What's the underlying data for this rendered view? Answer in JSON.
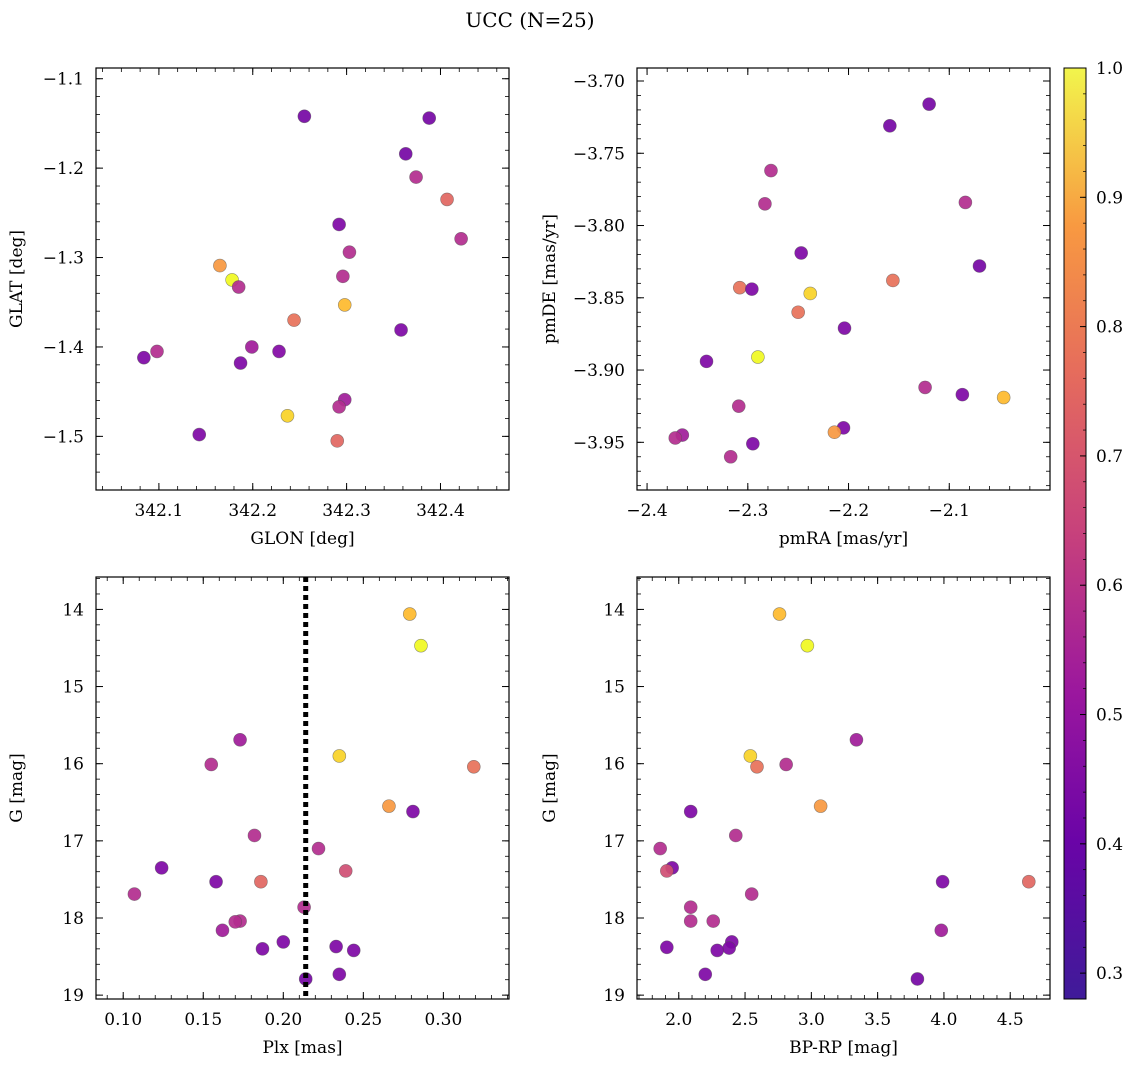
{
  "title": "UCC (N=25)",
  "colorbar": {
    "colormap": "plasma",
    "range": [
      0.28,
      1.0
    ],
    "ticks": [
      "1.0",
      "0.9",
      "0.8",
      "0.7",
      "0.6",
      "0.5",
      "0.4",
      "0.3"
    ]
  },
  "chart_data": [
    {
      "type": "scatter",
      "xlabel": "GLON [deg]",
      "ylabel": "GLAT [deg]",
      "xlim": [
        342.033,
        342.473
      ],
      "ylim": [
        -1.56,
        -1.088
      ],
      "y_inverted": false,
      "xticks": [
        "342.1",
        "342.2",
        "342.3",
        "342.4"
      ],
      "yticks": [
        "−1.1",
        "−1.2",
        "−1.3",
        "−1.4",
        "−1.5"
      ],
      "points": [
        {
          "x": 342.255,
          "y": -1.142,
          "p": 0.3
        },
        {
          "x": 342.388,
          "y": -1.144,
          "p": 0.3
        },
        {
          "x": 342.363,
          "y": -1.184,
          "p": 0.3
        },
        {
          "x": 342.374,
          "y": -1.21,
          "p": 0.45
        },
        {
          "x": 342.407,
          "y": -1.235,
          "p": 0.62
        },
        {
          "x": 342.292,
          "y": -1.263,
          "p": 0.32
        },
        {
          "x": 342.303,
          "y": -1.294,
          "p": 0.45
        },
        {
          "x": 342.422,
          "y": -1.279,
          "p": 0.45
        },
        {
          "x": 342.165,
          "y": -1.309,
          "p": 0.75
        },
        {
          "x": 342.296,
          "y": -1.321,
          "p": 0.45
        },
        {
          "x": 342.178,
          "y": -1.325,
          "p": 1.0
        },
        {
          "x": 342.185,
          "y": -1.333,
          "p": 0.45
        },
        {
          "x": 342.298,
          "y": -1.353,
          "p": 0.83
        },
        {
          "x": 342.244,
          "y": -1.37,
          "p": 0.65
        },
        {
          "x": 342.358,
          "y": -1.381,
          "p": 0.32
        },
        {
          "x": 342.199,
          "y": -1.4,
          "p": 0.4
        },
        {
          "x": 342.228,
          "y": -1.405,
          "p": 0.33
        },
        {
          "x": 342.098,
          "y": -1.405,
          "p": 0.45
        },
        {
          "x": 342.084,
          "y": -1.412,
          "p": 0.32
        },
        {
          "x": 342.187,
          "y": -1.418,
          "p": 0.32
        },
        {
          "x": 342.298,
          "y": -1.459,
          "p": 0.4
        },
        {
          "x": 342.292,
          "y": -1.467,
          "p": 0.45
        },
        {
          "x": 342.237,
          "y": -1.477,
          "p": 0.88
        },
        {
          "x": 342.143,
          "y": -1.498,
          "p": 0.32
        },
        {
          "x": 342.29,
          "y": -1.505,
          "p": 0.62
        }
      ]
    },
    {
      "type": "scatter",
      "xlabel": "pmRA [mas/yr]",
      "ylabel": "pmDE [mas/yr]",
      "xlim": [
        -2.41,
        -2.0
      ],
      "ylim": [
        -3.983,
        -3.691
      ],
      "y_inverted": false,
      "xticks": [
        "−2.4",
        "−2.3",
        "−2.2",
        "−2.1"
      ],
      "yticks": [
        "−3.70",
        "−3.75",
        "−3.80",
        "−3.85",
        "−3.90",
        "−3.95"
      ],
      "points": [
        {
          "x": -2.12,
          "y": -3.716,
          "p": 0.3
        },
        {
          "x": -2.159,
          "y": -3.731,
          "p": 0.3
        },
        {
          "x": -2.277,
          "y": -3.762,
          "p": 0.45
        },
        {
          "x": -2.283,
          "y": -3.785,
          "p": 0.45
        },
        {
          "x": -2.084,
          "y": -3.784,
          "p": 0.45
        },
        {
          "x": -2.247,
          "y": -3.819,
          "p": 0.32
        },
        {
          "x": -2.07,
          "y": -3.828,
          "p": 0.3
        },
        {
          "x": -2.156,
          "y": -3.838,
          "p": 0.65
        },
        {
          "x": -2.308,
          "y": -3.843,
          "p": 0.65
        },
        {
          "x": -2.296,
          "y": -3.844,
          "p": 0.32
        },
        {
          "x": -2.238,
          "y": -3.847,
          "p": 0.88
        },
        {
          "x": -2.25,
          "y": -3.86,
          "p": 0.65
        },
        {
          "x": -2.204,
          "y": -3.871,
          "p": 0.32
        },
        {
          "x": -2.29,
          "y": -3.891,
          "p": 0.98
        },
        {
          "x": -2.341,
          "y": -3.894,
          "p": 0.32
        },
        {
          "x": -2.124,
          "y": -3.912,
          "p": 0.45
        },
        {
          "x": -2.087,
          "y": -3.917,
          "p": 0.32
        },
        {
          "x": -2.046,
          "y": -3.919,
          "p": 0.83
        },
        {
          "x": -2.309,
          "y": -3.925,
          "p": 0.45
        },
        {
          "x": -2.205,
          "y": -3.94,
          "p": 0.32
        },
        {
          "x": -2.214,
          "y": -3.943,
          "p": 0.75
        },
        {
          "x": -2.365,
          "y": -3.945,
          "p": 0.4
        },
        {
          "x": -2.372,
          "y": -3.947,
          "p": 0.45
        },
        {
          "x": -2.295,
          "y": -3.951,
          "p": 0.32
        },
        {
          "x": -2.317,
          "y": -3.96,
          "p": 0.45
        }
      ]
    },
    {
      "type": "scatter",
      "xlabel": "Plx [mas]",
      "ylabel": "G [mag]",
      "xlim": [
        0.083,
        0.341
      ],
      "ylim": [
        19.05,
        13.58
      ],
      "y_inverted": true,
      "xticks": [
        "0.10",
        "0.15",
        "0.20",
        "0.25",
        "0.30"
      ],
      "yticks": [
        "14",
        "15",
        "16",
        "17",
        "18",
        "19"
      ],
      "vline": {
        "x": 0.214,
        "style": "dotted"
      },
      "points": [
        {
          "x": 0.279,
          "y": 14.06,
          "p": 0.83
        },
        {
          "x": 0.286,
          "y": 14.47,
          "p": 0.98
        },
        {
          "x": 0.173,
          "y": 15.69,
          "p": 0.4
        },
        {
          "x": 0.235,
          "y": 15.9,
          "p": 0.88
        },
        {
          "x": 0.155,
          "y": 16.01,
          "p": 0.45
        },
        {
          "x": 0.319,
          "y": 16.04,
          "p": 0.65
        },
        {
          "x": 0.266,
          "y": 16.55,
          "p": 0.75
        },
        {
          "x": 0.281,
          "y": 16.62,
          "p": 0.32
        },
        {
          "x": 0.182,
          "y": 16.93,
          "p": 0.45
        },
        {
          "x": 0.222,
          "y": 17.1,
          "p": 0.45
        },
        {
          "x": 0.124,
          "y": 17.35,
          "p": 0.32
        },
        {
          "x": 0.239,
          "y": 17.39,
          "p": 0.55
        },
        {
          "x": 0.158,
          "y": 17.53,
          "p": 0.32
        },
        {
          "x": 0.186,
          "y": 17.53,
          "p": 0.62
        },
        {
          "x": 0.107,
          "y": 17.69,
          "p": 0.45
        },
        {
          "x": 0.213,
          "y": 17.86,
          "p": 0.45
        },
        {
          "x": 0.173,
          "y": 18.04,
          "p": 0.45
        },
        {
          "x": 0.17,
          "y": 18.05,
          "p": 0.45
        },
        {
          "x": 0.162,
          "y": 18.16,
          "p": 0.4
        },
        {
          "x": 0.2,
          "y": 18.31,
          "p": 0.32
        },
        {
          "x": 0.233,
          "y": 18.37,
          "p": 0.32
        },
        {
          "x": 0.187,
          "y": 18.4,
          "p": 0.32
        },
        {
          "x": 0.244,
          "y": 18.42,
          "p": 0.32
        },
        {
          "x": 0.235,
          "y": 18.73,
          "p": 0.32
        },
        {
          "x": 0.214,
          "y": 18.79,
          "p": 0.3
        }
      ]
    },
    {
      "type": "scatter",
      "xlabel": "BP-RP [mag]",
      "ylabel": "G [mag]",
      "xlim": [
        1.685,
        4.8
      ],
      "ylim": [
        19.05,
        13.58
      ],
      "y_inverted": true,
      "xticks": [
        "2.0",
        "2.5",
        "3.0",
        "3.5",
        "4.0",
        "4.5"
      ],
      "yticks": [
        "14",
        "15",
        "16",
        "17",
        "18",
        "19"
      ],
      "points": [
        {
          "x": 2.76,
          "y": 14.06,
          "p": 0.83
        },
        {
          "x": 2.97,
          "y": 14.47,
          "p": 0.98
        },
        {
          "x": 3.34,
          "y": 15.69,
          "p": 0.4
        },
        {
          "x": 2.54,
          "y": 15.9,
          "p": 0.88
        },
        {
          "x": 2.81,
          "y": 16.01,
          "p": 0.45
        },
        {
          "x": 2.59,
          "y": 16.04,
          "p": 0.65
        },
        {
          "x": 3.07,
          "y": 16.55,
          "p": 0.75
        },
        {
          "x": 2.09,
          "y": 16.62,
          "p": 0.32
        },
        {
          "x": 2.43,
          "y": 16.93,
          "p": 0.45
        },
        {
          "x": 1.86,
          "y": 17.1,
          "p": 0.45
        },
        {
          "x": 1.95,
          "y": 17.35,
          "p": 0.32
        },
        {
          "x": 1.91,
          "y": 17.39,
          "p": 0.55
        },
        {
          "x": 3.99,
          "y": 17.53,
          "p": 0.32
        },
        {
          "x": 4.64,
          "y": 17.53,
          "p": 0.62
        },
        {
          "x": 2.55,
          "y": 17.69,
          "p": 0.45
        },
        {
          "x": 2.09,
          "y": 17.86,
          "p": 0.45
        },
        {
          "x": 2.09,
          "y": 18.04,
          "p": 0.45
        },
        {
          "x": 2.26,
          "y": 18.04,
          "p": 0.45
        },
        {
          "x": 3.98,
          "y": 18.16,
          "p": 0.4
        },
        {
          "x": 2.4,
          "y": 18.31,
          "p": 0.32
        },
        {
          "x": 2.38,
          "y": 18.39,
          "p": 0.32
        },
        {
          "x": 1.91,
          "y": 18.38,
          "p": 0.32
        },
        {
          "x": 2.29,
          "y": 18.42,
          "p": 0.32
        },
        {
          "x": 2.2,
          "y": 18.73,
          "p": 0.32
        },
        {
          "x": 3.8,
          "y": 18.79,
          "p": 0.3
        }
      ]
    }
  ]
}
